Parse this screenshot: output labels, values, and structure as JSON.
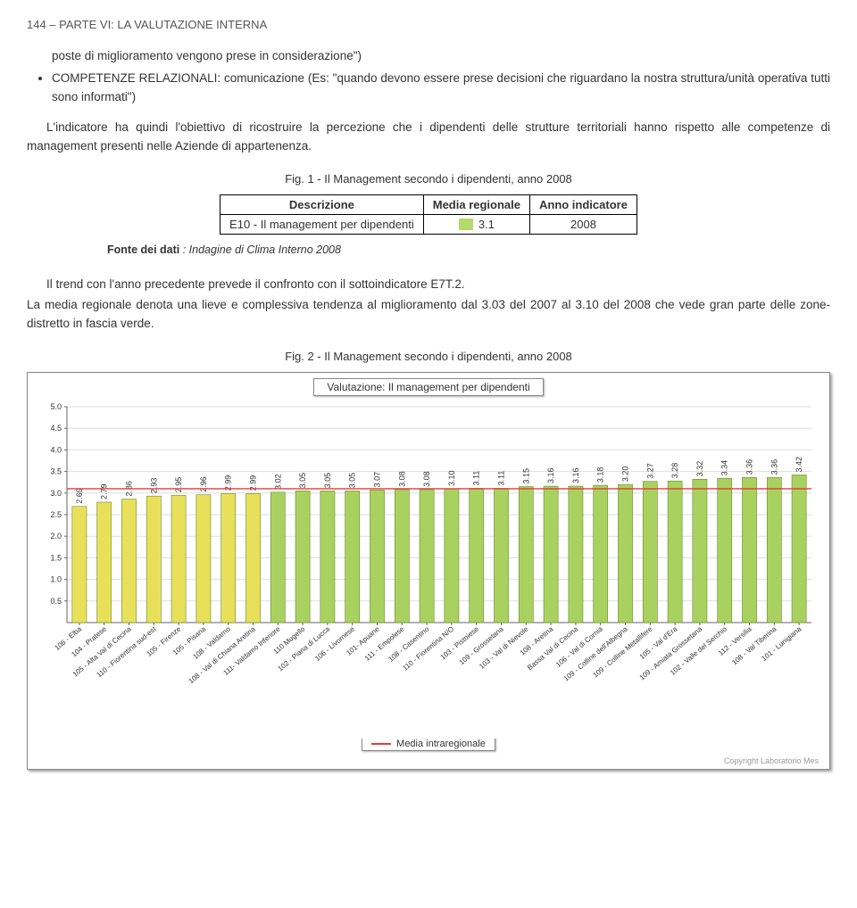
{
  "header": "144 – PARTE VI: LA VALUTAZIONE INTERNA",
  "intro_line": "poste di miglioramento vengono prese in considerazione\")",
  "bullet1": "COMPETENZE RELAZIONALI: comunicazione (Es: \"quando devono essere prese decisioni che riguardano la nostra struttura/unità operativa tutti sono informati\")",
  "para1": "L'indicatore ha quindi l'obiettivo di ricostruire la percezione che i dipendenti delle strutture territoriali hanno rispetto alle competenze di management presenti nelle Aziende di appartenenza.",
  "fig1_caption": "Fig. 1 - Il Management secondo i dipendenti, anno 2008",
  "table1": {
    "headers": [
      "Descrizione",
      "Media regionale",
      "Anno indicatore"
    ],
    "row": {
      "desc": "E10 - Il management per dipendenti",
      "media": "3.1",
      "anno": "2008",
      "swatch_color": "#b5d96a"
    }
  },
  "fonte_label": "Fonte dei dati",
  "fonte_value": ": Indagine di Clima Interno 2008",
  "para2a": "Il trend con l'anno precedente prevede il confronto con il sottoindicatore E7T.2.",
  "para2b": "La media regionale denota una lieve e complessiva tendenza al miglioramento dal 3.03 del 2007 al 3.10 del 2008 che vede gran parte delle zone-distretto in fascia verde.",
  "fig2_caption": "Fig. 2 - Il Management secondo i dipendenti, anno 2008",
  "chart": {
    "title": "Valutazione: Il management per  dipendenti",
    "type": "bar",
    "y_min": 0,
    "y_max": 5.0,
    "y_tick_step": 0.5,
    "y_ticks": [
      0.5,
      1.0,
      1.5,
      2.0,
      2.5,
      3.0,
      3.5,
      4.0,
      4.5,
      5.0
    ],
    "grid_color": "#dddddd",
    "axis_color": "#666666",
    "bg_color": "#ffffff",
    "label_fontsize": 9,
    "value_fontsize": 9,
    "xlabel_fontsize": 8,
    "bar_width_ratio": 0.58,
    "reference_line": {
      "value": 3.1,
      "color": "#e33b3b",
      "label": "Media intraregionale"
    },
    "colors": {
      "yellow": "#e8e05a",
      "green": "#a9d15f"
    },
    "copyright": "Copyright Laboratorio Mes",
    "bars": [
      {
        "label": "106 - Elba",
        "value": 2.69,
        "color": "yellow"
      },
      {
        "label": "104 - Pratese",
        "value": 2.79,
        "color": "yellow"
      },
      {
        "label": "105 - Alta Val di Cecina",
        "value": 2.86,
        "color": "yellow"
      },
      {
        "label": "110 - Fiorentina sud-est",
        "value": 2.93,
        "color": "yellow"
      },
      {
        "label": "105 - Firenze",
        "value": 2.95,
        "color": "yellow"
      },
      {
        "label": "105 - Pisana",
        "value": 2.96,
        "color": "yellow"
      },
      {
        "label": "108 - Valdarno",
        "value": 2.99,
        "color": "yellow"
      },
      {
        "label": "108 - Val di Chiana Aretina",
        "value": 2.99,
        "color": "yellow"
      },
      {
        "label": "111- Valdarno Inferiore",
        "value": 3.02,
        "color": "green"
      },
      {
        "label": "110 Mugello",
        "value": 3.05,
        "color": "green"
      },
      {
        "label": "102 - Piana di Lucca",
        "value": 3.05,
        "color": "green"
      },
      {
        "label": "106 - Livornese",
        "value": 3.05,
        "color": "green"
      },
      {
        "label": "101- Apuane",
        "value": 3.07,
        "color": "green"
      },
      {
        "label": "111 - Empolese",
        "value": 3.08,
        "color": "green"
      },
      {
        "label": "108 - Casentino",
        "value": 3.08,
        "color": "green"
      },
      {
        "label": "110 - Fiorentina N/O",
        "value": 3.1,
        "color": "green"
      },
      {
        "label": "103 - Pistoiese",
        "value": 3.11,
        "color": "green"
      },
      {
        "label": "109 - Grossetana",
        "value": 3.11,
        "color": "green"
      },
      {
        "label": "103 - Val di Nievole",
        "value": 3.15,
        "color": "green"
      },
      {
        "label": "108 - Aretina",
        "value": 3.16,
        "color": "green"
      },
      {
        "label": "Bassa Val di Cecina",
        "value": 3.16,
        "color": "green"
      },
      {
        "label": "106 - Val di Cornia",
        "value": 3.18,
        "color": "green"
      },
      {
        "label": "109 - Colline dell'Albegna",
        "value": 3.2,
        "color": "green"
      },
      {
        "label": "109 - Colline Metallifere",
        "value": 3.27,
        "color": "green"
      },
      {
        "label": "105 - Val d'Era",
        "value": 3.28,
        "color": "green"
      },
      {
        "label": "109 - Amiata Grossetana",
        "value": 3.32,
        "color": "green"
      },
      {
        "label": "102 - Valle del Serchio",
        "value": 3.34,
        "color": "green"
      },
      {
        "label": "112 - Versilia",
        "value": 3.36,
        "color": "green"
      },
      {
        "label": "108 - Val Tiberina",
        "value": 3.36,
        "color": "green"
      },
      {
        "label": "101 - Lunigiana",
        "value": 3.42,
        "color": "green"
      }
    ]
  }
}
